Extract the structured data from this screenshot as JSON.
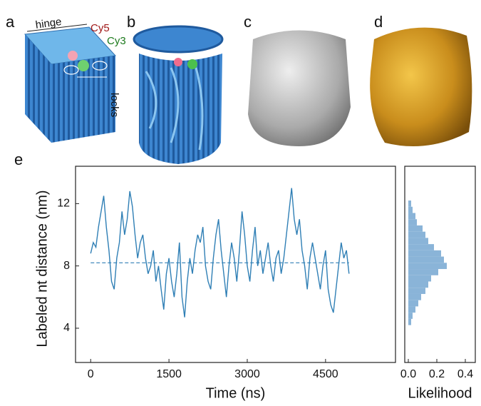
{
  "figure": {
    "panel_labels": [
      "a",
      "b",
      "c",
      "d",
      "e"
    ],
    "annotations": [
      "hinge",
      "Cy5",
      "Cy3",
      "locks"
    ]
  },
  "chart_data": [
    {
      "type": "line",
      "xlabel": "Time (ns)",
      "ylabel": "Labeled nt distance (nm)",
      "color": "#2f7fb5",
      "x": [
        0,
        50,
        100,
        150,
        200,
        250,
        300,
        350,
        400,
        450,
        500,
        550,
        600,
        650,
        700,
        750,
        800,
        850,
        900,
        950,
        1000,
        1050,
        1100,
        1150,
        1200,
        1250,
        1300,
        1350,
        1400,
        1450,
        1500,
        1550,
        1600,
        1650,
        1700,
        1750,
        1800,
        1850,
        1900,
        1950,
        2000,
        2050,
        2100,
        2150,
        2200,
        2250,
        2300,
        2350,
        2400,
        2450,
        2500,
        2550,
        2600,
        2650,
        2700,
        2750,
        2800,
        2850,
        2900,
        2950,
        3000,
        3050,
        3100,
        3150,
        3200,
        3250,
        3300,
        3350,
        3400,
        3450,
        3500,
        3550,
        3600,
        3650,
        3700,
        3750,
        3800,
        3850,
        3900,
        3950,
        4000,
        4050,
        4100,
        4150,
        4200,
        4250,
        4300,
        4350,
        4400,
        4450,
        4500,
        4550,
        4600,
        4650,
        4700,
        4750,
        4800,
        4850,
        4900,
        4950
      ],
      "values": [
        8.8,
        9.5,
        9.2,
        10.5,
        11.5,
        12.5,
        10.5,
        9.0,
        7.0,
        6.5,
        8.5,
        9.5,
        11.5,
        10.0,
        11.0,
        12.8,
        11.8,
        10.0,
        8.5,
        9.5,
        10.0,
        8.5,
        7.5,
        8.0,
        9.0,
        7.0,
        8.0,
        6.5,
        5.2,
        7.5,
        8.5,
        7.0,
        6.0,
        7.5,
        9.5,
        6.0,
        4.7,
        7.0,
        8.5,
        7.5,
        9.0,
        10.0,
        9.5,
        10.5,
        8.0,
        7.0,
        6.5,
        8.5,
        10.0,
        11.0,
        9.0,
        7.5,
        6.0,
        8.0,
        9.5,
        8.5,
        7.0,
        9.0,
        11.5,
        10.0,
        8.0,
        7.0,
        9.0,
        10.5,
        8.0,
        9.0,
        7.5,
        8.5,
        9.5,
        8.0,
        7.0,
        8.5,
        9.0,
        7.5,
        8.5,
        10.0,
        11.5,
        13.0,
        11.0,
        10.0,
        11.0,
        9.0,
        8.0,
        6.5,
        8.5,
        9.5,
        8.5,
        7.5,
        6.5,
        8.0,
        9.0,
        6.5,
        5.5,
        5.0,
        6.5,
        8.0,
        9.5,
        8.5,
        9.0,
        7.5
      ],
      "hline": 8.2,
      "xlim": [
        -290,
        5840
      ],
      "xticks": [
        0,
        1500,
        3000,
        4500
      ],
      "ylim": [
        1.8,
        14.4
      ],
      "yticks": [
        4,
        8,
        12
      ]
    },
    {
      "type": "hbar-histogram",
      "xlabel": "Likelihood",
      "color": "#8ab4d8",
      "bins": [
        4.2,
        4.6,
        5.0,
        5.4,
        5.8,
        6.2,
        6.6,
        7.0,
        7.4,
        7.8,
        8.2,
        8.6,
        9.0,
        9.4,
        9.8,
        10.2,
        10.6,
        11.0,
        11.4,
        11.8,
        12.2
      ],
      "values": [
        0.02,
        0.03,
        0.05,
        0.07,
        0.09,
        0.12,
        0.14,
        0.16,
        0.21,
        0.27,
        0.25,
        0.23,
        0.18,
        0.14,
        0.12,
        0.1,
        0.06,
        0.05,
        0.03,
        0.02
      ],
      "xlim": [
        -0.025,
        0.47
      ],
      "xticks": [
        {
          "value": 0,
          "label": "0.0"
        },
        0.2,
        0.4
      ],
      "ylim": [
        1.8,
        14.4
      ]
    }
  ]
}
